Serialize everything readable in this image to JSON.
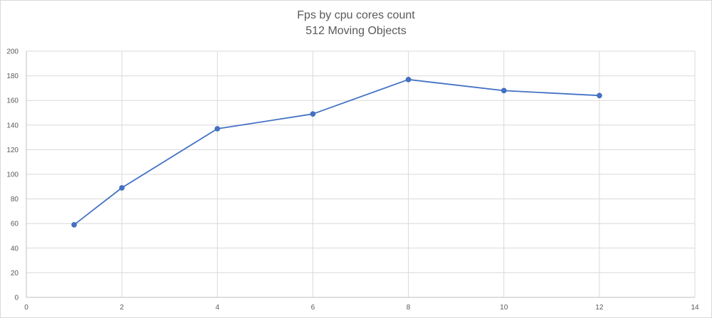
{
  "chart_data": {
    "type": "line",
    "title": "Fps by cpu cores count",
    "subtitle": "512 Moving Objects",
    "xlabel": "",
    "ylabel": "",
    "xlim": [
      0,
      14
    ],
    "ylim": [
      0,
      200
    ],
    "x_ticks": [
      0,
      2,
      4,
      6,
      8,
      10,
      12,
      14
    ],
    "y_ticks": [
      0,
      20,
      40,
      60,
      80,
      100,
      120,
      140,
      160,
      180,
      200
    ],
    "grid": true,
    "legend": "none",
    "series": [
      {
        "color": "#4472c4",
        "x": [
          1,
          2,
          4,
          6,
          8,
          10,
          12
        ],
        "y": [
          59,
          89,
          137,
          149,
          177,
          168,
          164
        ]
      }
    ]
  }
}
